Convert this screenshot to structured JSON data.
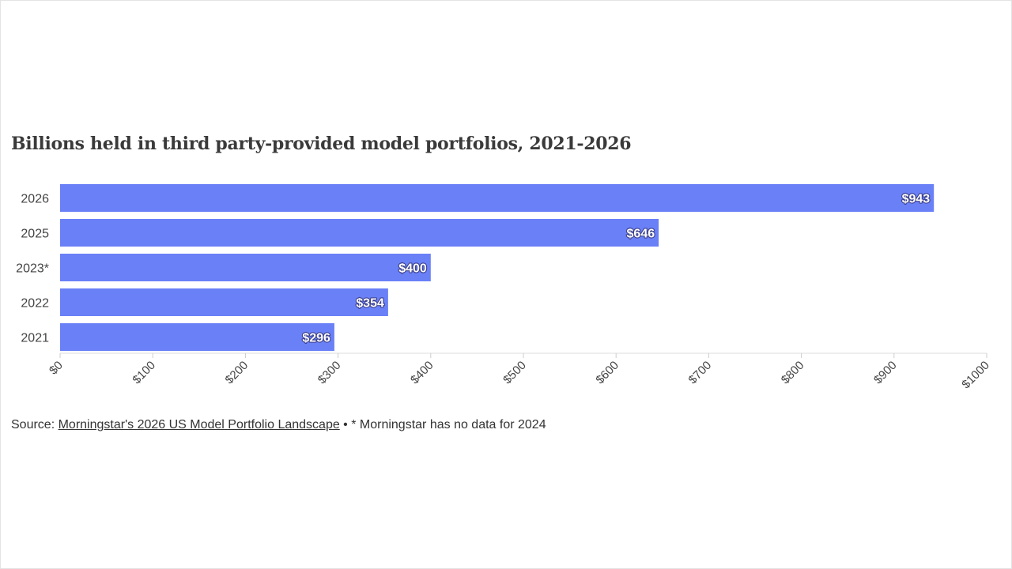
{
  "chart_data": {
    "type": "bar",
    "orientation": "horizontal",
    "title": "Billions held in third party-provided model portfolios, 2021-2026",
    "categories": [
      "2026",
      "2025",
      "2023*",
      "2022",
      "2021"
    ],
    "values": [
      943,
      646,
      400,
      354,
      296
    ],
    "value_labels": [
      "$943",
      "$646",
      "$400",
      "$354",
      "$296"
    ],
    "xlim": [
      0,
      1000
    ],
    "x_ticks": [
      0,
      100,
      200,
      300,
      400,
      500,
      600,
      700,
      800,
      900,
      1000
    ],
    "x_tick_labels": [
      "$0",
      "$100",
      "$200",
      "$300",
      "$400",
      "$500",
      "$600",
      "$700",
      "$800",
      "$900",
      "$1000"
    ],
    "xlabel": "",
    "ylabel": "",
    "grid": false,
    "legend": "none",
    "bar_color": "#6a80f7"
  },
  "footer": {
    "source_prefix": "Source: ",
    "source_link_text": "Morningstar's 2026 US Model Portfolio Landscape",
    "note": " • * Morningstar has no data for 2024"
  }
}
